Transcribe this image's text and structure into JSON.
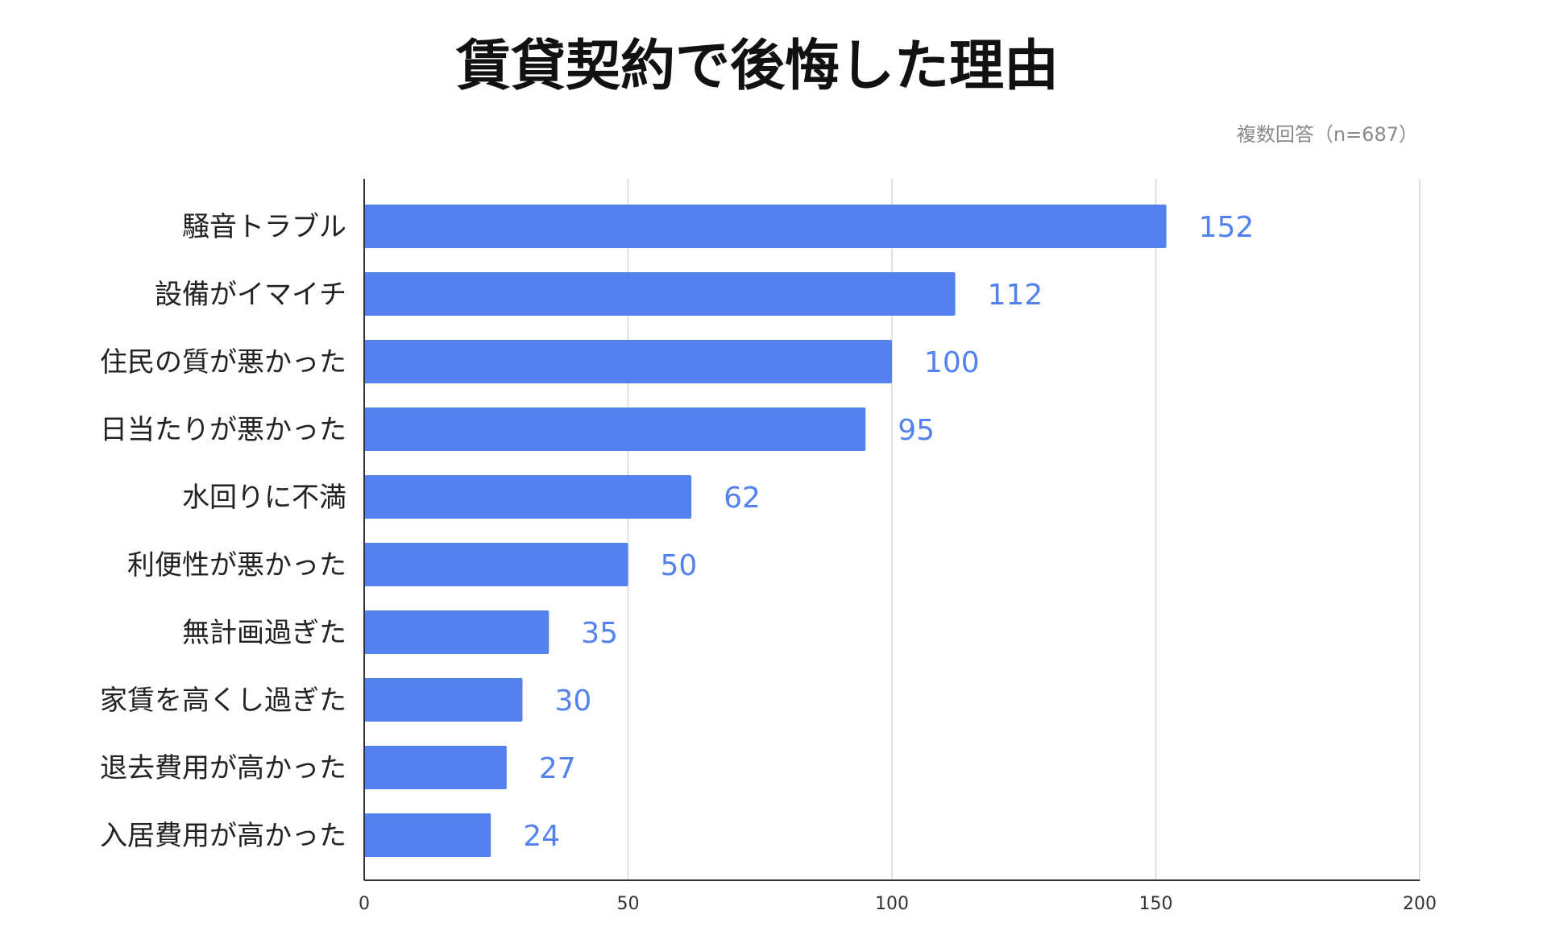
{
  "chart_data": {
    "type": "bar",
    "orientation": "horizontal",
    "title": "賃貸契約で後悔した理由",
    "subtitle": "複数回答（n=687）",
    "xlabel": "",
    "ylabel": "",
    "categories": [
      "騒音トラブル",
      "設備がイマイチ",
      "住民の質が悪かった",
      "日当たりが悪かった",
      "水回りに不満",
      "利便性が悪かった",
      "無計画過ぎた",
      "家賃を高くし過ぎた",
      "退去費用が高かった",
      "入居費用が高かった"
    ],
    "values": [
      152,
      112,
      100,
      95,
      62,
      50,
      35,
      30,
      27,
      24
    ],
    "data_labels": [
      "152",
      "112",
      "100",
      "95",
      "62",
      "50",
      "35",
      "30",
      "27",
      "24"
    ],
    "xlim": [
      0,
      200
    ],
    "x_ticks": [
      0,
      50,
      100,
      150,
      200
    ],
    "x_tick_labels": [
      "0",
      "50",
      "100",
      "150",
      "200"
    ],
    "grid": "vertical",
    "legend": "none",
    "colors": {
      "bar": "#5382ee",
      "data_label": "#5382ee",
      "title": "#111111",
      "subtitle": "#8a8a8a",
      "category_label": "#222222",
      "tick_label": "#333333",
      "grid": "#d9d9d9",
      "axis": "#333333"
    }
  }
}
